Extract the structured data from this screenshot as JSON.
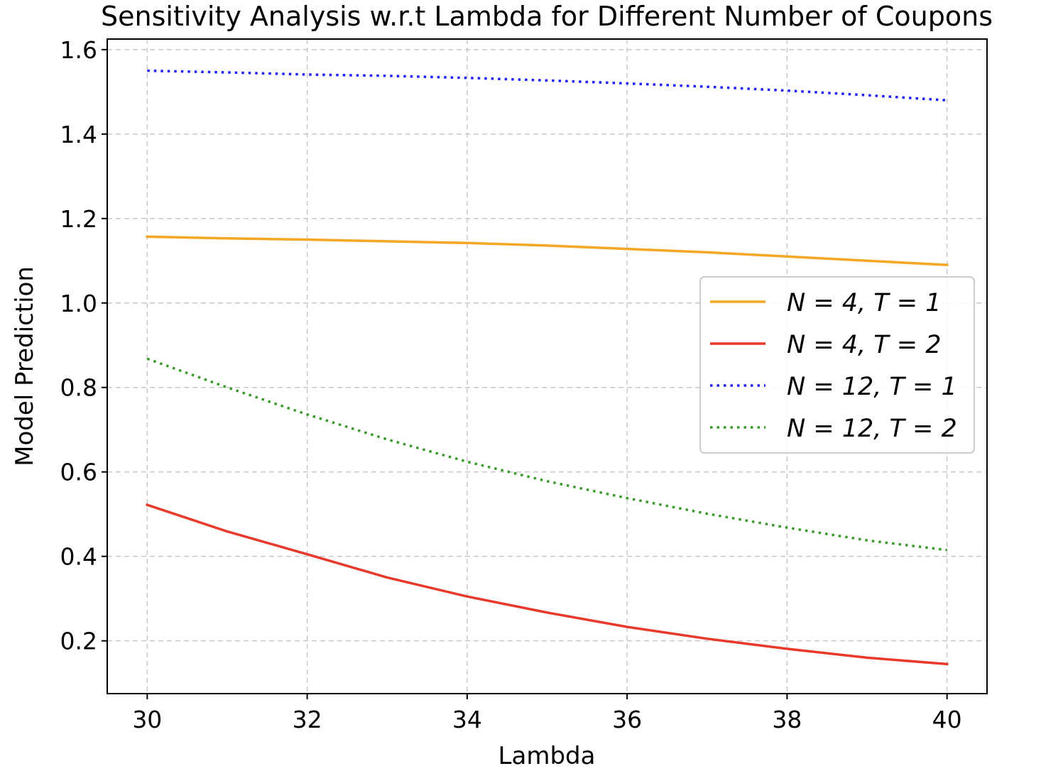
{
  "chart_data": {
    "type": "line",
    "title": "Sensitivity Analysis w.r.t Lambda for Different Number of Coupons",
    "xlabel": "Lambda",
    "ylabel": "Model Prediction",
    "xlim": [
      29.5,
      40.5
    ],
    "ylim": [
      0.075,
      1.625
    ],
    "x_ticks": [
      30,
      32,
      34,
      36,
      38,
      40
    ],
    "x_tick_labels": [
      "30",
      "32",
      "34",
      "36",
      "38",
      "40"
    ],
    "y_ticks": [
      0.2,
      0.4,
      0.6,
      0.8,
      1.0,
      1.2,
      1.4,
      1.6
    ],
    "y_tick_labels": [
      "0.2",
      "0.4",
      "0.6",
      "0.8",
      "1.0",
      "1.2",
      "1.4",
      "1.6"
    ],
    "grid": true,
    "legend_position": "center-right",
    "x": [
      30,
      31,
      32,
      33,
      34,
      35,
      36,
      37,
      38,
      39,
      40
    ],
    "series": [
      {
        "name": "N = 4, T = 1",
        "color": "#f5a623",
        "style": "solid",
        "values": [
          1.157,
          1.153,
          1.15,
          1.146,
          1.142,
          1.136,
          1.128,
          1.12,
          1.11,
          1.1,
          1.09
        ]
      },
      {
        "name": "N = 4, T = 2",
        "color": "#e8392a",
        "style": "solid",
        "values": [
          0.522,
          0.459,
          0.405,
          0.35,
          0.305,
          0.267,
          0.233,
          0.205,
          0.181,
          0.16,
          0.145
        ]
      },
      {
        "name": "N = 12, T = 1",
        "color": "#1f1fff",
        "style": "dotted",
        "values": [
          1.55,
          1.546,
          1.541,
          1.538,
          1.533,
          1.527,
          1.52,
          1.512,
          1.503,
          1.492,
          1.48
        ]
      },
      {
        "name": "N = 12, T = 2",
        "color": "#3a9a2c",
        "style": "dotted",
        "values": [
          0.868,
          0.8,
          0.736,
          0.677,
          0.624,
          0.578,
          0.538,
          0.501,
          0.468,
          0.438,
          0.415
        ]
      }
    ]
  }
}
